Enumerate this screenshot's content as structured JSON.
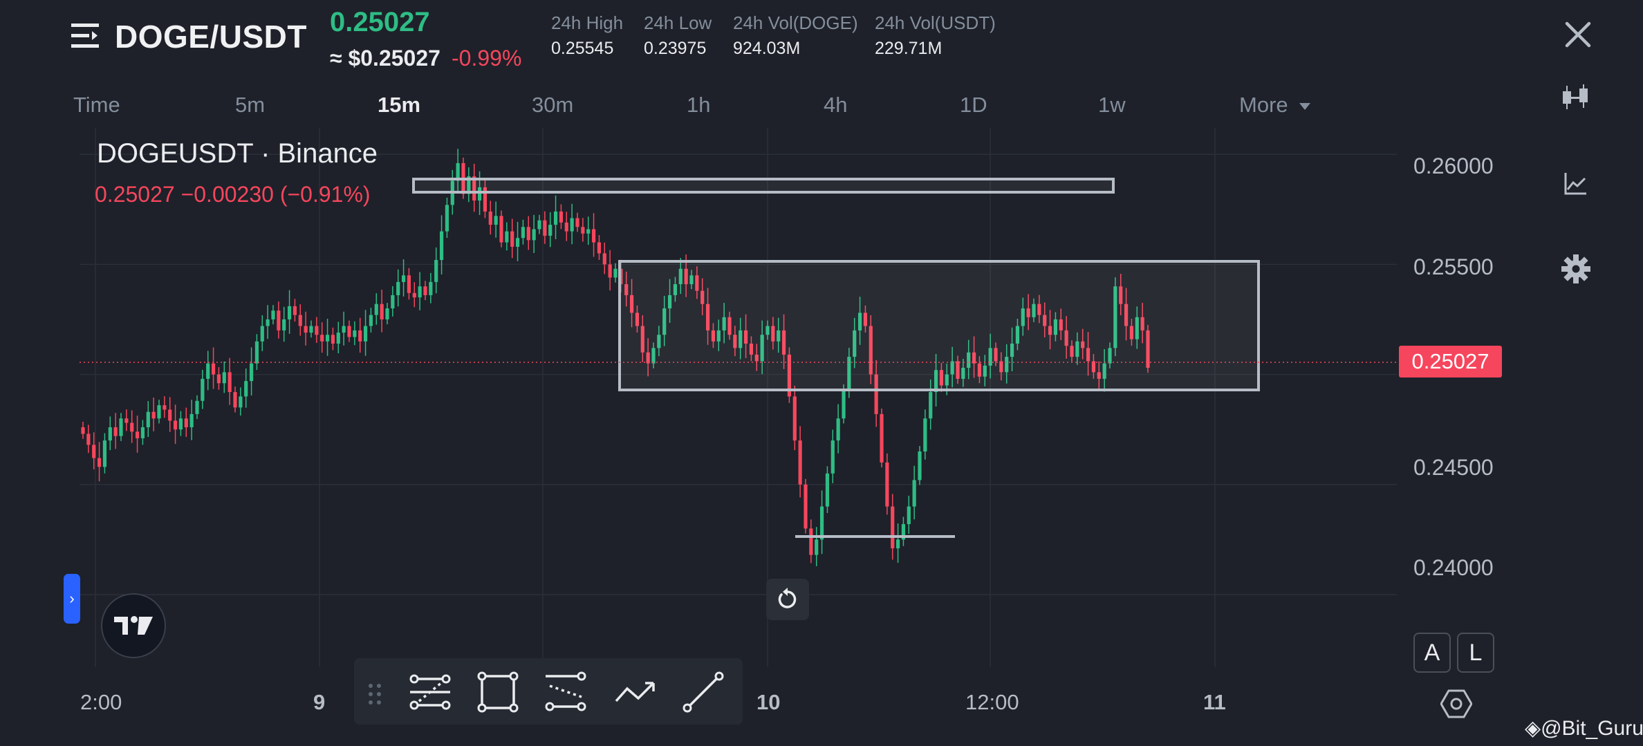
{
  "header": {
    "pair": "DOGE/USDT",
    "last_price": "0.25027",
    "usd_price": "≈ $0.25027",
    "change_pct": "-0.99%",
    "stats": [
      {
        "label": "24h High",
        "value": "0.25545"
      },
      {
        "label": "24h Low",
        "value": "0.23975"
      },
      {
        "label": "24h Vol(DOGE)",
        "value": "924.03M"
      },
      {
        "label": "24h Vol(USDT)",
        "value": "229.71M"
      }
    ]
  },
  "timeframes": {
    "items": [
      "Time",
      "5m",
      "15m",
      "30m",
      "1h",
      "4h",
      "1D",
      "1w",
      "More"
    ],
    "active": "15m"
  },
  "legend": {
    "title": "DOGEUSDT · Binance",
    "values": "0.25027  −0.00230 (−0.91%)"
  },
  "y_axis": [
    "0.26000",
    "0.25500",
    "0.24500",
    "0.24000"
  ],
  "x_axis": [
    "2:00",
    "9",
    "10",
    "12:00",
    "11"
  ],
  "current_price_tag": "0.25027",
  "scale_buttons": {
    "auto": "A",
    "log": "L"
  },
  "watermark": "@Bit_Guru",
  "icons": {
    "menu": "menu-icon",
    "close": "close-icon",
    "indicators": "candles-icon",
    "chart_type": "chart-line-icon",
    "settings": "gear-icon",
    "reset": "reset-icon",
    "tv_logo": "tradingview-logo",
    "tools": [
      "fib-retracement-icon",
      "rectangle-icon",
      "parallel-channel-icon",
      "path-icon",
      "trend-line-icon"
    ]
  },
  "colors": {
    "up": "#2ebd85",
    "down": "#f6465d",
    "accent": "#2962ff"
  },
  "chart_data": {
    "type": "candlestick",
    "ylim": [
      0.2367,
      0.2612
    ],
    "x_ticks": [
      "2:00",
      "9",
      "10",
      "12:00",
      "11"
    ],
    "current_price": 0.25027,
    "closes": [
      0.2473,
      0.2468,
      0.2462,
      0.2458,
      0.247,
      0.2476,
      0.2472,
      0.248,
      0.2478,
      0.2474,
      0.2471,
      0.2476,
      0.2483,
      0.248,
      0.2486,
      0.2484,
      0.2479,
      0.2475,
      0.248,
      0.2476,
      0.2482,
      0.2488,
      0.2498,
      0.2505,
      0.25,
      0.2496,
      0.2501,
      0.2492,
      0.2485,
      0.249,
      0.2497,
      0.2505,
      0.2515,
      0.2522,
      0.2525,
      0.2529,
      0.252,
      0.2525,
      0.2531,
      0.2527,
      0.2522,
      0.2519,
      0.2522,
      0.2518,
      0.2515,
      0.2518,
      0.2514,
      0.2519,
      0.2522,
      0.2517,
      0.252,
      0.2515,
      0.2522,
      0.2527,
      0.2532,
      0.2525,
      0.253,
      0.2536,
      0.2542,
      0.2545,
      0.2537,
      0.2535,
      0.254,
      0.2536,
      0.2542,
      0.2552,
      0.2565,
      0.2577,
      0.2588,
      0.2596,
      0.2582,
      0.259,
      0.2579,
      0.2585,
      0.2574,
      0.2568,
      0.2572,
      0.256,
      0.2565,
      0.2558,
      0.2562,
      0.2567,
      0.2561,
      0.2566,
      0.257,
      0.2563,
      0.2568,
      0.2574,
      0.2569,
      0.2565,
      0.2571,
      0.2567,
      0.2564,
      0.2566,
      0.256,
      0.2555,
      0.255,
      0.2544,
      0.2548,
      0.2541,
      0.2536,
      0.2528,
      0.2522,
      0.251,
      0.2505,
      0.2512,
      0.2518,
      0.253,
      0.2536,
      0.2541,
      0.2548,
      0.2541,
      0.2545,
      0.2538,
      0.2532,
      0.252,
      0.2515,
      0.252,
      0.2526,
      0.2518,
      0.2512,
      0.252,
      0.2514,
      0.2509,
      0.2506,
      0.2518,
      0.2522,
      0.2515,
      0.252,
      0.2509,
      0.249,
      0.247,
      0.245,
      0.243,
      0.2418,
      0.2425,
      0.244,
      0.2455,
      0.247,
      0.248,
      0.2493,
      0.2508,
      0.252,
      0.2528,
      0.2522,
      0.25,
      0.2482,
      0.246,
      0.244,
      0.2421,
      0.2425,
      0.2432,
      0.244,
      0.2452,
      0.2465,
      0.248,
      0.2492,
      0.2502,
      0.2495,
      0.25,
      0.2506,
      0.2498,
      0.2503,
      0.251,
      0.2505,
      0.2499,
      0.2504,
      0.2512,
      0.2506,
      0.2501,
      0.2508,
      0.2514,
      0.2522,
      0.253,
      0.2526,
      0.2532,
      0.2527,
      0.2522,
      0.2518,
      0.2525,
      0.252,
      0.2513,
      0.2508,
      0.2515,
      0.2512,
      0.2506,
      0.2501,
      0.2498,
      0.2505,
      0.2512,
      0.254,
      0.2532,
      0.2522,
      0.2516,
      0.2526,
      0.252,
      0.2503
    ]
  }
}
